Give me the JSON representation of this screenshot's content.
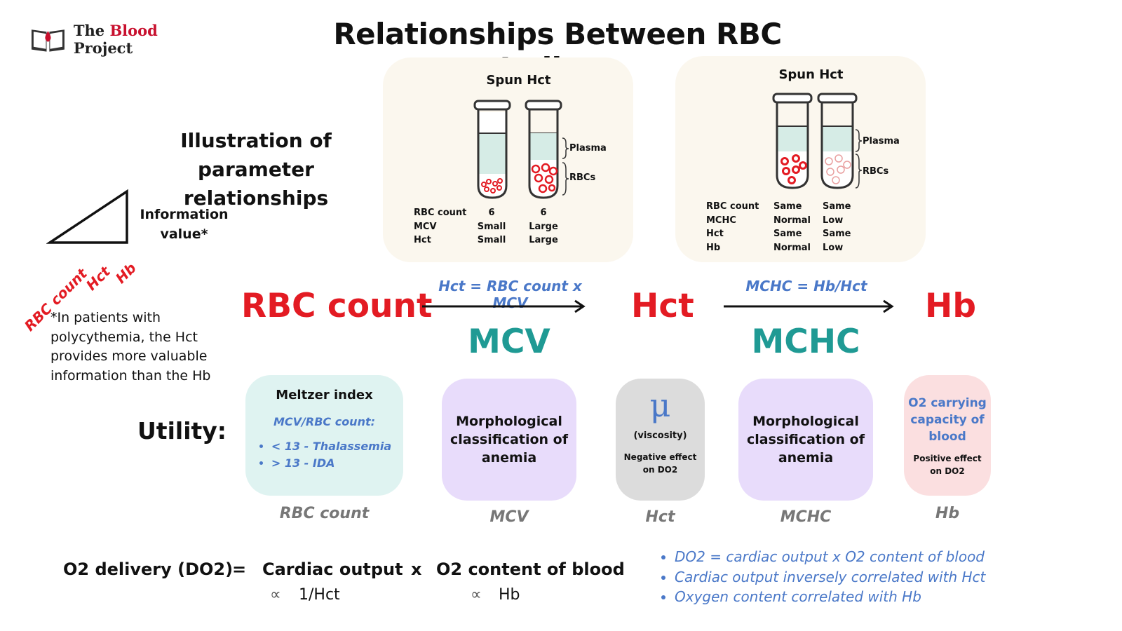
{
  "header": {
    "logo_prefix": "The",
    "logo_blood": "Blood",
    "logo_suffix": "Project",
    "title": "Relationships Between RBC Indices"
  },
  "illustration": {
    "heading": "Illustration of parameter relationships",
    "info_label": "Information value*",
    "axis_labels": [
      "RBC count",
      "Hct",
      "Hb"
    ],
    "note": "*In patients with polycythemia, the Hct provides more valuable information than the Hb"
  },
  "panel_left": {
    "title": "Spun Hct",
    "plasma_label": "Plasma",
    "rbcs_label": "RBCs",
    "row_labels": [
      "RBC count",
      "MCV",
      "Hct"
    ],
    "tube1_values": [
      "6",
      "Small",
      "Small"
    ],
    "tube2_values": [
      "6",
      "Large",
      "Large"
    ]
  },
  "panel_right": {
    "title": "Spun Hct",
    "plasma_label": "Plasma",
    "rbcs_label": "RBCs",
    "row_labels": [
      "RBC count",
      "MCHC",
      "Hct",
      "Hb"
    ],
    "tube1_values": [
      "Same",
      "Normal",
      "Same",
      "Normal"
    ],
    "tube2_values": [
      "Same",
      "Low",
      "Same",
      "Low"
    ]
  },
  "flow": {
    "rbc_count": "RBC count",
    "hct": "Hct",
    "hb": "Hb",
    "formula1": "Hct = RBC count x MCV",
    "formula2": "MCHC = Hb/Hct",
    "mcv": "MCV",
    "mchc": "MCHC"
  },
  "utility": {
    "label": "Utility:",
    "meltzer": {
      "title": "Meltzer index",
      "formula": "MCV/RBC count:",
      "bullets": [
        "< 13 - Thalassemia",
        "> 13 - IDA"
      ],
      "caption": "RBC count"
    },
    "mcv": {
      "text": "Morphological classification of anemia",
      "caption": "MCV"
    },
    "hct": {
      "symbol": "μ",
      "viscosity": "(viscosity)",
      "effect": "Negative effect on DO2",
      "caption": "Hct"
    },
    "mchc": {
      "text": "Morphological classification of anemia",
      "caption": "MCHC"
    },
    "hb": {
      "text": "O2 carrying capacity of blood",
      "effect": "Positive effect on DO2",
      "caption": "Hb"
    }
  },
  "do2": {
    "lhs": "O2 delivery (DO2)",
    "equals": "=",
    "co": "Cardiac output",
    "times": "x",
    "o2": "O2 content of blood",
    "prop_symbol": "∝",
    "co_prop": "1/Hct",
    "o2_prop": "Hb"
  },
  "bullets": [
    "DO2 = cardiac output x O2 content of blood",
    "Cardiac output inversely correlated with Hct",
    "Oxygen content correlated with Hb"
  ],
  "colors": {
    "red": "#e31b23",
    "teal": "#1f9a94",
    "blue": "#4a78c8",
    "meltzer_bg": "#dff3f1",
    "morph_bg": "#e8dcfb",
    "hct_bg": "#dcdcdc",
    "hb_bg": "#fbdfe0"
  }
}
